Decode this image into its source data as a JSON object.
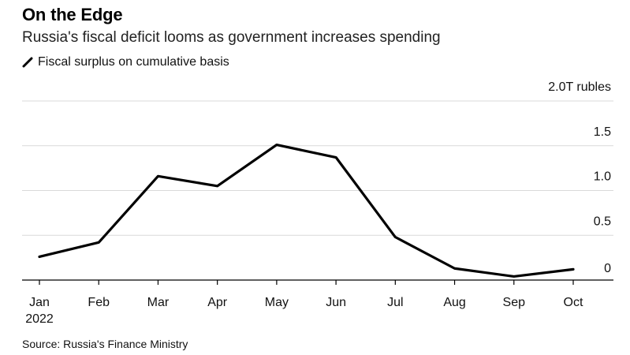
{
  "title": "On the Edge",
  "subtitle": "Russia's fiscal deficit looms as government increases spending",
  "legend": {
    "label": "Fiscal surplus on cumulative basis",
    "icon": "line-icon"
  },
  "source": "Source: Russia's Finance Ministry",
  "colors": {
    "line": "#000000",
    "grid": "#d9d9d9",
    "axis": "#000000"
  },
  "chart_data": {
    "type": "line",
    "title": "On the Edge",
    "xlabel": "",
    "ylabel": "2.0T rubles",
    "categories": [
      "Jan",
      "Feb",
      "Mar",
      "Apr",
      "May",
      "Jun",
      "Jul",
      "Aug",
      "Sep",
      "Oct"
    ],
    "year_label": "2022",
    "series": [
      {
        "name": "Fiscal surplus on cumulative basis",
        "values": [
          0.26,
          0.42,
          1.16,
          1.05,
          1.51,
          1.37,
          0.48,
          0.13,
          0.04,
          0.12
        ]
      }
    ],
    "ylim": [
      0,
      2.0
    ],
    "yticks": [
      0,
      0.5,
      1.0,
      1.5,
      2.0
    ],
    "ytick_labels": [
      "0",
      "0.5",
      "1.0",
      "1.5",
      "2.0T rubles"
    ],
    "grid": true
  }
}
